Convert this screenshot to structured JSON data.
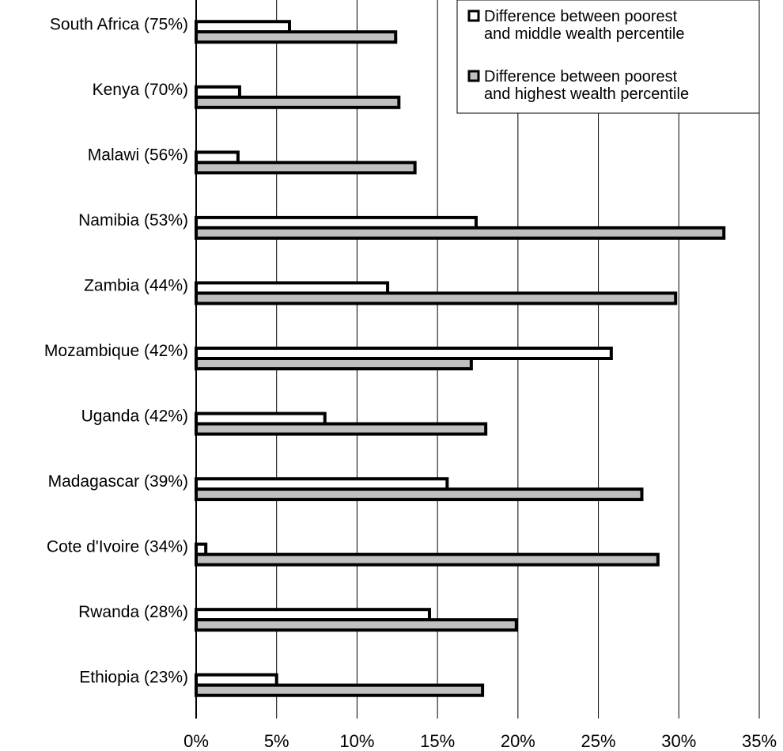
{
  "chart_data": {
    "type": "bar",
    "orientation": "horizontal",
    "categories": [
      "South Africa (75%)",
      "Kenya (70%)",
      "Malawi (56%)",
      "Namibia (53%)",
      "Zambia (44%)",
      "Mozambique (42%)",
      "Uganda (42%)",
      "Madagascar (39%)",
      "Cote d'Ivoire (34%)",
      "Rwanda (28%)",
      "Ethiopia (23%)"
    ],
    "series": [
      {
        "name": "Difference between poorest and middle wealth percentile",
        "legend_lines": [
          "Difference between poorest",
          "and middle wealth percentile"
        ],
        "color": "#ffffff",
        "values": [
          5.8,
          2.7,
          2.6,
          17.4,
          11.9,
          25.8,
          8.0,
          15.6,
          0.6,
          14.5,
          5.0
        ]
      },
      {
        "name": "Difference between poorest and highest wealth percentile",
        "legend_lines": [
          "Difference between poorest",
          "and highest wealth percentile"
        ],
        "color": "#c0c0c0",
        "values": [
          12.4,
          12.6,
          13.6,
          32.8,
          29.8,
          17.1,
          18.0,
          27.7,
          28.7,
          19.9,
          17.8
        ]
      }
    ],
    "xlim": [
      0,
      35
    ],
    "x_ticks": [
      "0%",
      "5%",
      "10%",
      "15%",
      "20%",
      "25%",
      "30%",
      "35%"
    ],
    "title": "",
    "xlabel": "",
    "ylabel": "",
    "grid": "vertical",
    "legend_position": "top-right"
  }
}
